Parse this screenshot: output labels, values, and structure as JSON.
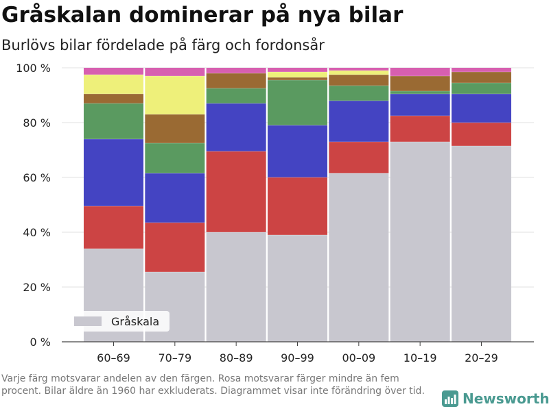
{
  "header": {
    "title": "Gråskalan dominerar på nya bilar",
    "subtitle": "Burlövs bilar fördelade på färg och fordonsår"
  },
  "footer": {
    "note": "Varje färg motsvarar andelen av den färgen. Rosa motsvarar färger mindre än fem procent. Bilar äldre än 1960 har exkluderats. Diagrammet visar inte förändring över tid.",
    "brand": "Newsworthy",
    "brand_icon": "bar-chart-logo-icon",
    "brand_color": "#4a9a91"
  },
  "chart_data": {
    "type": "bar",
    "stacked": true,
    "categories": [
      "60–69",
      "70–79",
      "80–89",
      "90–99",
      "00–09",
      "10–19",
      "20–29"
    ],
    "ylim": [
      0,
      100
    ],
    "yticks": [
      0,
      20,
      40,
      60,
      80,
      100
    ],
    "ytick_labels": [
      "0 %",
      "20 %",
      "40 %",
      "60 %",
      "80 %",
      "100 %"
    ],
    "grid": true,
    "legend": {
      "placement": "bottom-left",
      "entries": [
        "Gråskala"
      ]
    },
    "series": [
      {
        "name": "Gråskala",
        "color": "#c8c7cf",
        "values": [
          34,
          25.5,
          40,
          39,
          61.5,
          73,
          71.5
        ]
      },
      {
        "color": "#cc4444",
        "values": [
          15.5,
          18,
          29.5,
          21,
          11.5,
          9.5,
          8.5
        ]
      },
      {
        "color": "#4444c2",
        "values": [
          24.5,
          18,
          17.5,
          19,
          15,
          8,
          10.5
        ]
      },
      {
        "color": "#5a9a60",
        "values": [
          13,
          11,
          5.5,
          16.5,
          5.5,
          1,
          4
        ]
      },
      {
        "color": "#9a6a33",
        "values": [
          3.5,
          10.5,
          5.5,
          1,
          4,
          5.5,
          4
        ]
      },
      {
        "color": "#eef07a",
        "values": [
          7,
          14,
          0,
          2,
          1.5,
          0,
          0
        ]
      },
      {
        "color": "#d75fb0",
        "values": [
          2.5,
          3,
          2,
          1.5,
          1,
          3,
          1.5
        ]
      }
    ]
  }
}
